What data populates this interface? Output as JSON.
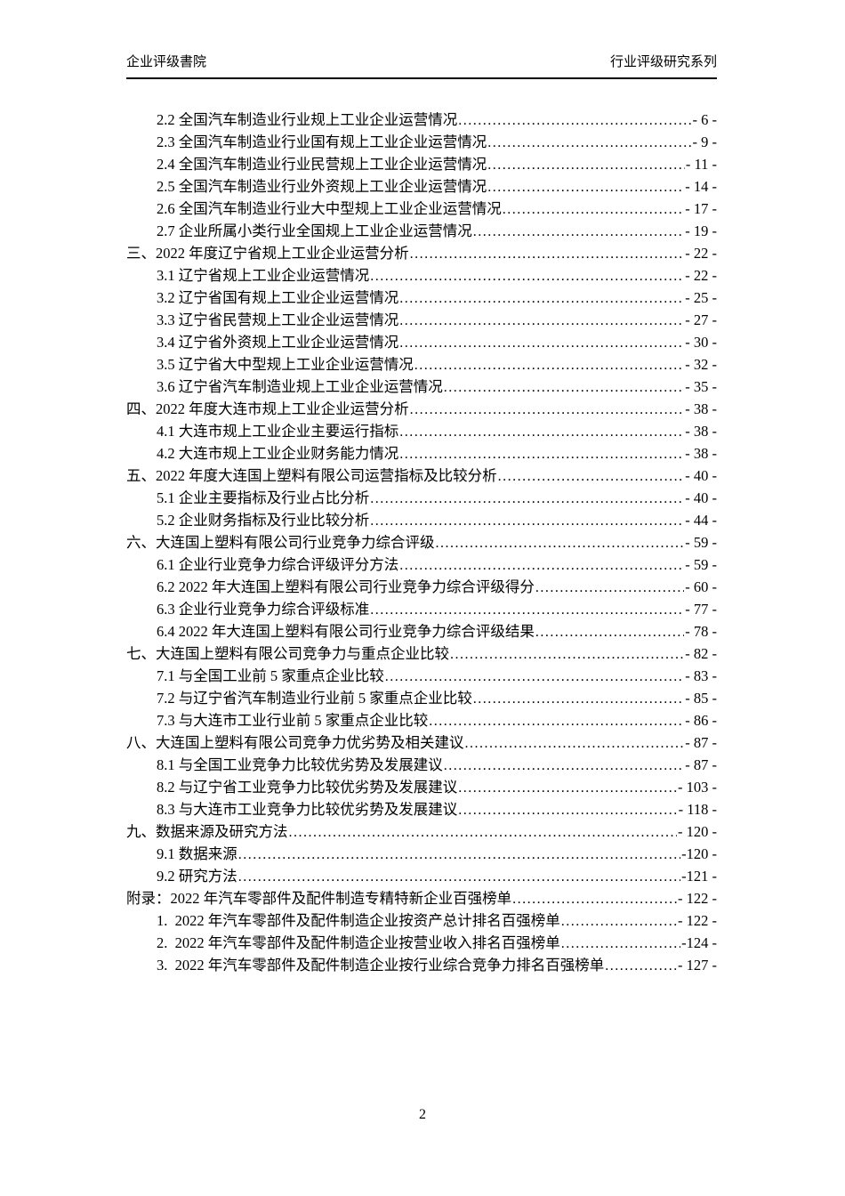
{
  "header": {
    "left": "企业评级書院",
    "right": "行业评级研究系列"
  },
  "toc": {
    "items": [
      {
        "level": 1,
        "title": "2.2 全国汽车制造业行业规上工业企业运营情况",
        "page": "- 6 -"
      },
      {
        "level": 1,
        "title": "2.3 全国汽车制造业行业国有规上工业企业运营情况",
        "page": "- 9 -"
      },
      {
        "level": 1,
        "title": "2.4 全国汽车制造业行业民营规上工业企业运营情况",
        "page": "- 11 -"
      },
      {
        "level": 1,
        "title": "2.5 全国汽车制造业行业外资规上工业企业运营情况",
        "page": "- 14 -"
      },
      {
        "level": 1,
        "title": "2.6 全国汽车制造业行业大中型规上工业企业运营情况",
        "page": "- 17 -"
      },
      {
        "level": 1,
        "title": "2.7 企业所属小类行业全国规上工业企业运营情况",
        "page": "- 19 -"
      },
      {
        "level": 0,
        "title": "三、2022 年度辽宁省规上工业企业运营分析",
        "page": "- 22 -"
      },
      {
        "level": 1,
        "title": "3.1 辽宁省规上工业企业运营情况",
        "page": "- 22 -"
      },
      {
        "level": 1,
        "title": "3.2 辽宁省国有规上工业企业运营情况",
        "page": "- 25 -"
      },
      {
        "level": 1,
        "title": "3.3 辽宁省民营规上工业企业运营情况",
        "page": "- 27 -"
      },
      {
        "level": 1,
        "title": "3.4 辽宁省外资规上工业企业运营情况",
        "page": "- 30 -"
      },
      {
        "level": 1,
        "title": "3.5 辽宁省大中型规上工业企业运营情况",
        "page": "- 32 -"
      },
      {
        "level": 1,
        "title": "3.6 辽宁省汽车制造业规上工业企业运营情况",
        "page": "- 35 -"
      },
      {
        "level": 0,
        "title": "四、2022 年度大连市规上工业企业运营分析",
        "page": "- 38 -"
      },
      {
        "level": 1,
        "title": "4.1 大连市规上工业企业主要运行指标",
        "page": "- 38 -"
      },
      {
        "level": 1,
        "title": "4.2 大连市规上工业企业财务能力情况",
        "page": "- 38 -"
      },
      {
        "level": 0,
        "title": "五、2022 年度大连国上塑料有限公司运营指标及比较分析",
        "page": "- 40 -"
      },
      {
        "level": 1,
        "title": "5.1 企业主要指标及行业占比分析",
        "page": "- 40 -"
      },
      {
        "level": 1,
        "title": "5.2 企业财务指标及行业比较分析",
        "page": "- 44 -"
      },
      {
        "level": 0,
        "title": "六、大连国上塑料有限公司行业竞争力综合评级",
        "page": "- 59 -"
      },
      {
        "level": 1,
        "title": "6.1 企业行业竞争力综合评级评分方法",
        "page": "- 59 -"
      },
      {
        "level": 1,
        "title": "6.2 2022 年大连国上塑料有限公司行业竞争力综合评级得分",
        "page": "- 60 -"
      },
      {
        "level": 1,
        "title": "6.3 企业行业竞争力综合评级标准",
        "page": "- 77 -"
      },
      {
        "level": 1,
        "title": "6.4 2022 年大连国上塑料有限公司行业竞争力综合评级结果",
        "page": "- 78 -"
      },
      {
        "level": 0,
        "title": "七、大连国上塑料有限公司竞争力与重点企业比较",
        "page": "- 82 -"
      },
      {
        "level": 1,
        "title": "7.1 与全国工业前 5 家重点企业比较",
        "page": "- 83 -"
      },
      {
        "level": 1,
        "title": "7.2 与辽宁省汽车制造业行业前 5 家重点企业比较",
        "page": "- 85 -"
      },
      {
        "level": 1,
        "title": "7.3 与大连市工业行业前 5 家重点企业比较",
        "page": "- 86 -"
      },
      {
        "level": 0,
        "title": "八、大连国上塑料有限公司竞争力优劣势及相关建议",
        "page": "- 87 -"
      },
      {
        "level": 1,
        "title": "8.1 与全国工业竞争力比较优劣势及发展建议",
        "page": "- 87 -"
      },
      {
        "level": 1,
        "title": "8.2 与辽宁省工业竞争力比较优劣势及发展建议",
        "page": "- 103 -"
      },
      {
        "level": 1,
        "title": "8.3 与大连市工业竞争力比较优劣势及发展建议",
        "page": "- 118 -"
      },
      {
        "level": 0,
        "title": "九、数据来源及研究方法",
        "page": "- 120 -"
      },
      {
        "level": 1,
        "title": "9.1 数据来源",
        "page": "-120 -"
      },
      {
        "level": 1,
        "title": "9.2 研究方法",
        "page": "-121 -"
      },
      {
        "level": 0,
        "title": "附录：2022 年汽车零部件及配件制造专精特新企业百强榜单",
        "page": "- 122 -"
      },
      {
        "level": 1,
        "title": "1.  2022 年汽车零部件及配件制造企业按资产总计排名百强榜单",
        "page": "- 122 -"
      },
      {
        "level": 1,
        "title": "2.  2022 年汽车零部件及配件制造企业按营业收入排名百强榜单",
        "page": "-124 -"
      },
      {
        "level": 1,
        "title": "3.  2022 年汽车零部件及配件制造企业按行业综合竞争力排名百强榜单",
        "page": "- 127 -"
      }
    ]
  },
  "footer": {
    "page_number": "2"
  }
}
